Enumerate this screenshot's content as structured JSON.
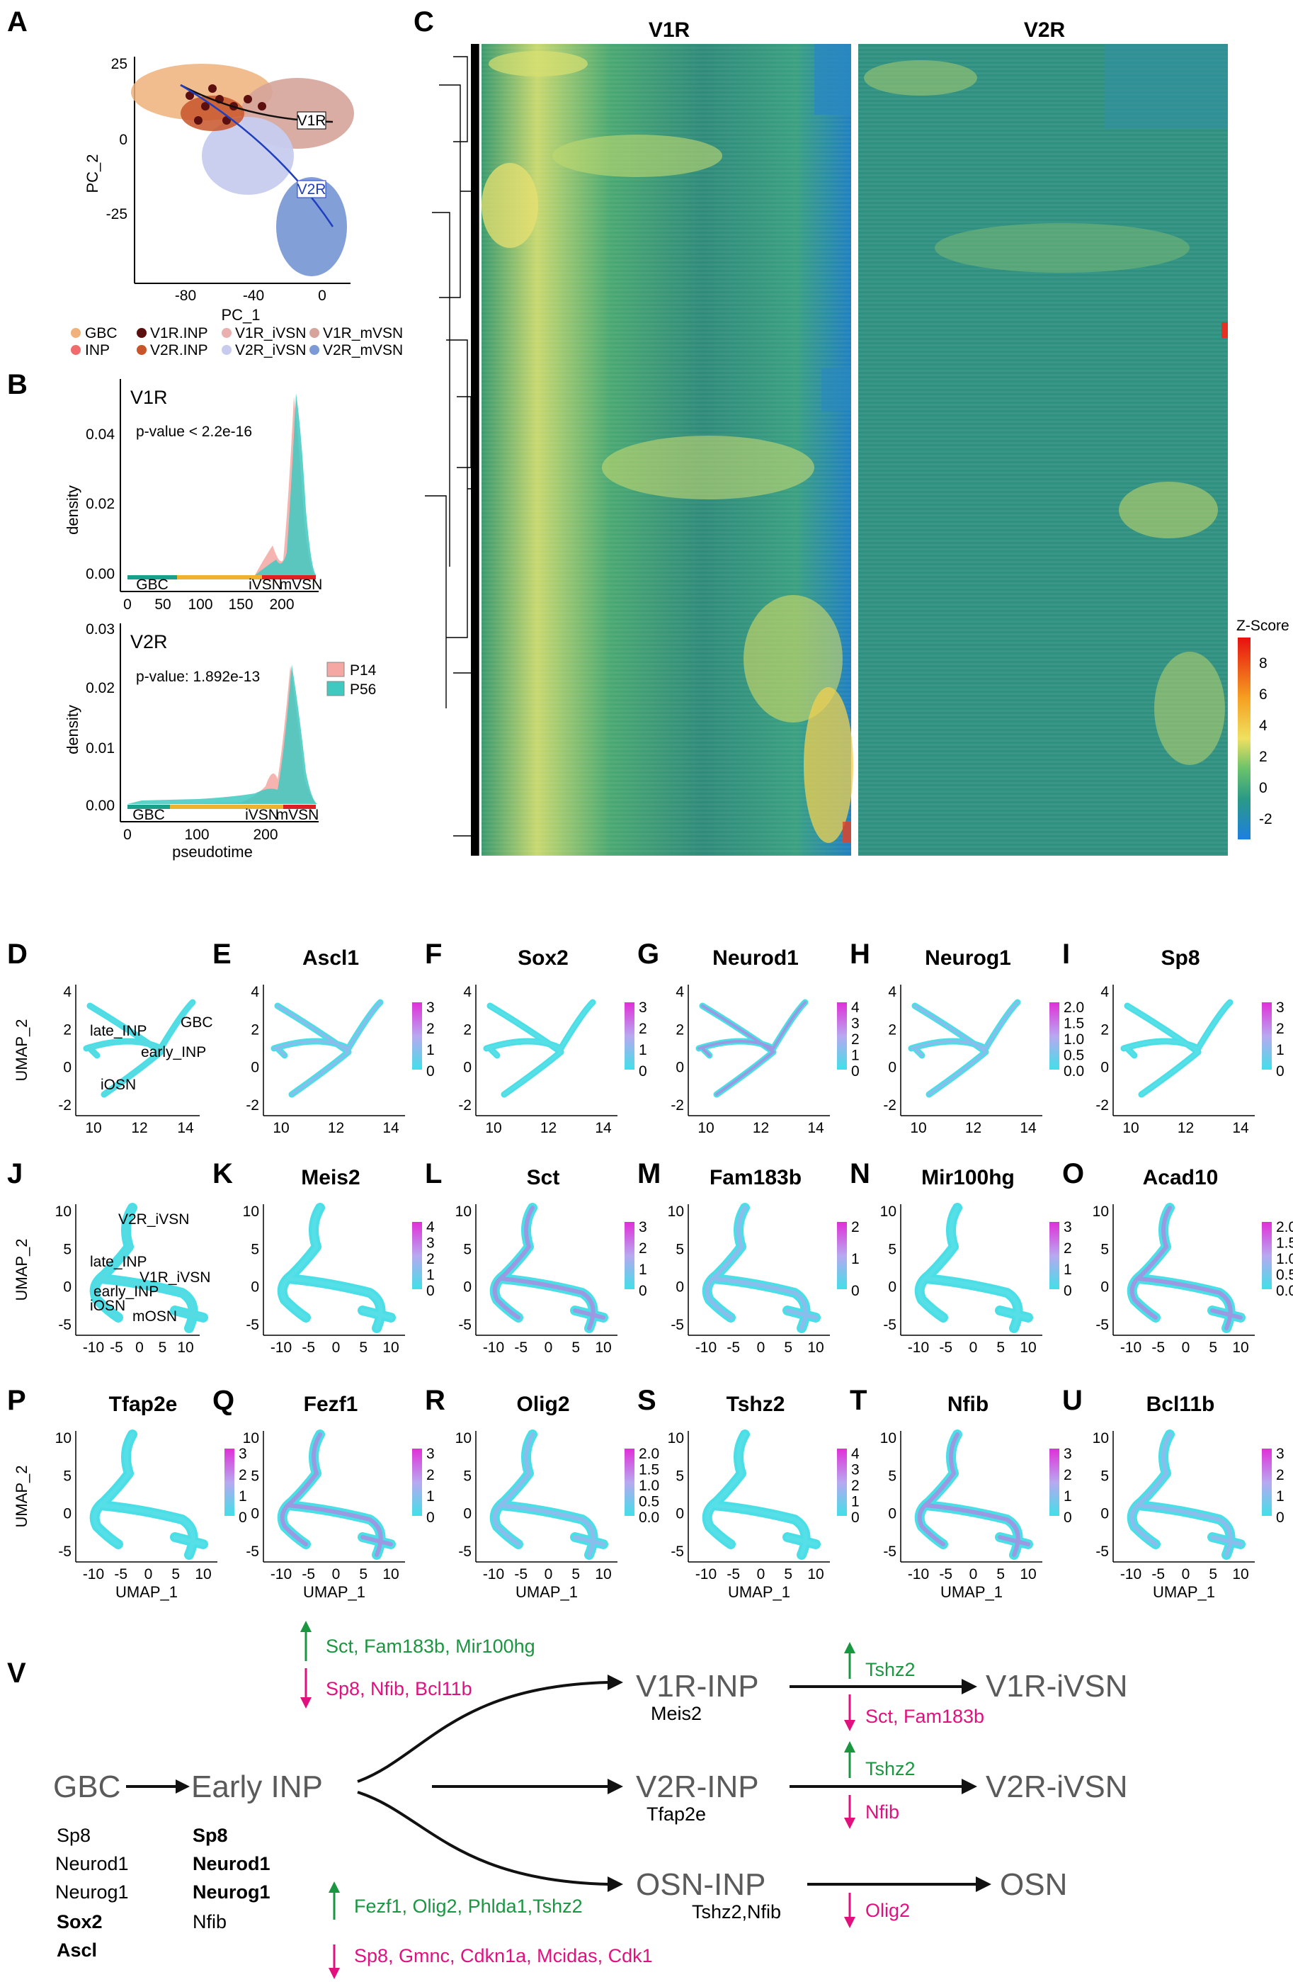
{
  "panel_letters": [
    "A",
    "B",
    "C",
    "D",
    "E",
    "F",
    "G",
    "H",
    "I",
    "J",
    "K",
    "L",
    "M",
    "N",
    "O",
    "P",
    "Q",
    "R",
    "S",
    "T",
    "U",
    "V"
  ],
  "panelA": {
    "xlabel": "PC_1",
    "ylabel": "PC_2",
    "xticks": [
      "-80",
      "-40",
      "0"
    ],
    "yticks": [
      "25",
      "0",
      "-25"
    ],
    "trajectory_labels": [
      "V1R",
      "V2R"
    ],
    "legend": [
      {
        "label": "GBC",
        "color": "#f0b27a"
      },
      {
        "label": "V1R.INP",
        "color": "#5b0f0f"
      },
      {
        "label": "V1R_iVSN",
        "color": "#eab0b0"
      },
      {
        "label": "V1R_mVSN",
        "color": "#d6a49a"
      },
      {
        "label": "INP",
        "color": "#f06c6c"
      },
      {
        "label": "V2R.INP",
        "color": "#c8552a"
      },
      {
        "label": "V2R_iVSN",
        "color": "#c7ccef"
      },
      {
        "label": "V2R_mVSN",
        "color": "#7c9ad6"
      }
    ]
  },
  "panelB": {
    "top": {
      "title": "V1R",
      "pvalue": "p-value < 2.2e-16",
      "ylabel": "density",
      "yticks": [
        "0.04",
        "0.02",
        "0.00"
      ],
      "xticks": [
        "0",
        "50",
        "100",
        "150",
        "200"
      ],
      "stages": [
        "GBC",
        "iVSN",
        "mVSN"
      ]
    },
    "bottom": {
      "title": "V2R",
      "pvalue": "p-value: 1.892e-13",
      "ylabel": "density",
      "yticks": [
        "0.03",
        "0.02",
        "0.01",
        "0.00"
      ],
      "xticks": [
        "0",
        "100",
        "200"
      ],
      "stages": [
        "GBC",
        "iVSN",
        "mVSN"
      ],
      "xlabel": "pseudotime"
    },
    "legend": [
      {
        "label": "P14",
        "color": "#f4a7a3"
      },
      {
        "label": "P56",
        "color": "#3fc9c0"
      }
    ]
  },
  "panelC": {
    "titles": [
      "V1R",
      "V2R"
    ],
    "colorbar_title": "Z-Score",
    "colorbar_ticks": [
      "8",
      "6",
      "4",
      "2",
      "0",
      "-2"
    ]
  },
  "feature_rows": [
    {
      "letters": [
        "D",
        "E",
        "F",
        "G",
        "H",
        "I"
      ],
      "genes": [
        "Ascl1",
        "Sox2",
        "Neurod1",
        "Neurog1",
        "Sp8"
      ],
      "scales": [
        [
          "3",
          "2",
          "1",
          "0"
        ],
        [
          "3",
          "2",
          "1",
          "0"
        ],
        [
          "4",
          "3",
          "2",
          "1",
          "0"
        ],
        [
          "2.0",
          "1.5",
          "1.0",
          "0.5",
          "0.0"
        ],
        [
          "3",
          "2",
          "1",
          "0"
        ]
      ],
      "yticks": [
        "4",
        "2",
        "0",
        "-2"
      ],
      "xticks": [
        "10",
        "12",
        "14"
      ],
      "ylabel": "UMAP_2",
      "cluster_labels": [
        "late_INP",
        "GBC",
        "early_INP",
        "iOSN"
      ]
    },
    {
      "letters": [
        "J",
        "K",
        "L",
        "M",
        "N",
        "O"
      ],
      "genes": [
        "Meis2",
        "Sct",
        "Fam183b",
        "Mir100hg",
        "Acad10"
      ],
      "scales": [
        [
          "4",
          "3",
          "2",
          "1",
          "0"
        ],
        [
          "3",
          "2",
          "1",
          "0"
        ],
        [
          "2",
          "1",
          "0"
        ],
        [
          "3",
          "2",
          "1",
          "0"
        ],
        [
          "2.0",
          "1.5",
          "1.0",
          "0.5",
          "0.0"
        ]
      ],
      "yticks": [
        "10",
        "5",
        "0",
        "-5"
      ],
      "xticks": [
        "-10",
        "-5",
        "0",
        "5",
        "10"
      ],
      "ylabel": "UMAP_2",
      "cluster_labels": [
        "V2R_iVSN",
        "late_INP",
        "V1R_iVSN",
        "early_INP",
        "iOSN",
        "mOSN"
      ]
    },
    {
      "letters": [
        "P",
        "Q",
        "R",
        "S",
        "T",
        "U"
      ],
      "genes": [
        "Tfap2e",
        "Fezf1",
        "Olig2",
        "Tshz2",
        "Nfib",
        "Bcl11b"
      ],
      "scales": [
        [
          "3",
          "2",
          "1",
          "0"
        ],
        [
          "3",
          "2",
          "1",
          "0"
        ],
        [
          "2.0",
          "1.5",
          "1.0",
          "0.5",
          "0.0"
        ],
        [
          "4",
          "3",
          "2",
          "1",
          "0"
        ],
        [
          "3",
          "2",
          "1",
          "0"
        ],
        [
          "3",
          "2",
          "1",
          "0"
        ]
      ],
      "yticks": [
        "10",
        "5",
        "0",
        "-5"
      ],
      "xticks": [
        "-10",
        "-5",
        "0",
        "5",
        "10"
      ],
      "ylabel": "UMAP_2",
      "xlabel": "UMAP_1"
    }
  ],
  "panelV": {
    "nodes": {
      "gbc": "GBC",
      "early_inp": "Early INP",
      "v1r_inp": "V1R-INP",
      "v1r_ivsn": "V1R-iVSN",
      "v2r_inp": "V2R-INP",
      "v2r_ivsn": "V2R-iVSN",
      "osn_inp": "OSN-INP",
      "osn": "OSN"
    },
    "markers": {
      "v1r_inp": "Meis2",
      "v2r_inp": "Tfap2e",
      "osn_inp": "Tshz2,Nfib"
    },
    "gbc_genes": [
      "Sp8",
      "Neurod1",
      "Neurog1",
      "Sox2",
      "Ascl"
    ],
    "early_inp_genes": [
      "Sp8",
      "Neurod1",
      "Neurog1",
      "Nfib"
    ],
    "regulation": {
      "v1r_up": "Sct, Fam183b, Mir100hg",
      "v1r_down": "Sp8, Nfib, Bcl11b",
      "v1r_ivsn_up": "Tshz2",
      "v1r_ivsn_down": "Sct, Fam183b",
      "v2r_ivsn_up": "Tshz2",
      "v2r_ivsn_down": "Nfib",
      "osn_up": "Fezf1, Olig2, Phlda1,Tshz2",
      "osn_down": "Sp8, Gmnc, Cdkn1a, Mcidas, Cdk1",
      "osn_final_down": "Olig2"
    },
    "colors": {
      "up": "#1a9641",
      "down": "#e0117f",
      "node": "#5a5a5a"
    }
  }
}
